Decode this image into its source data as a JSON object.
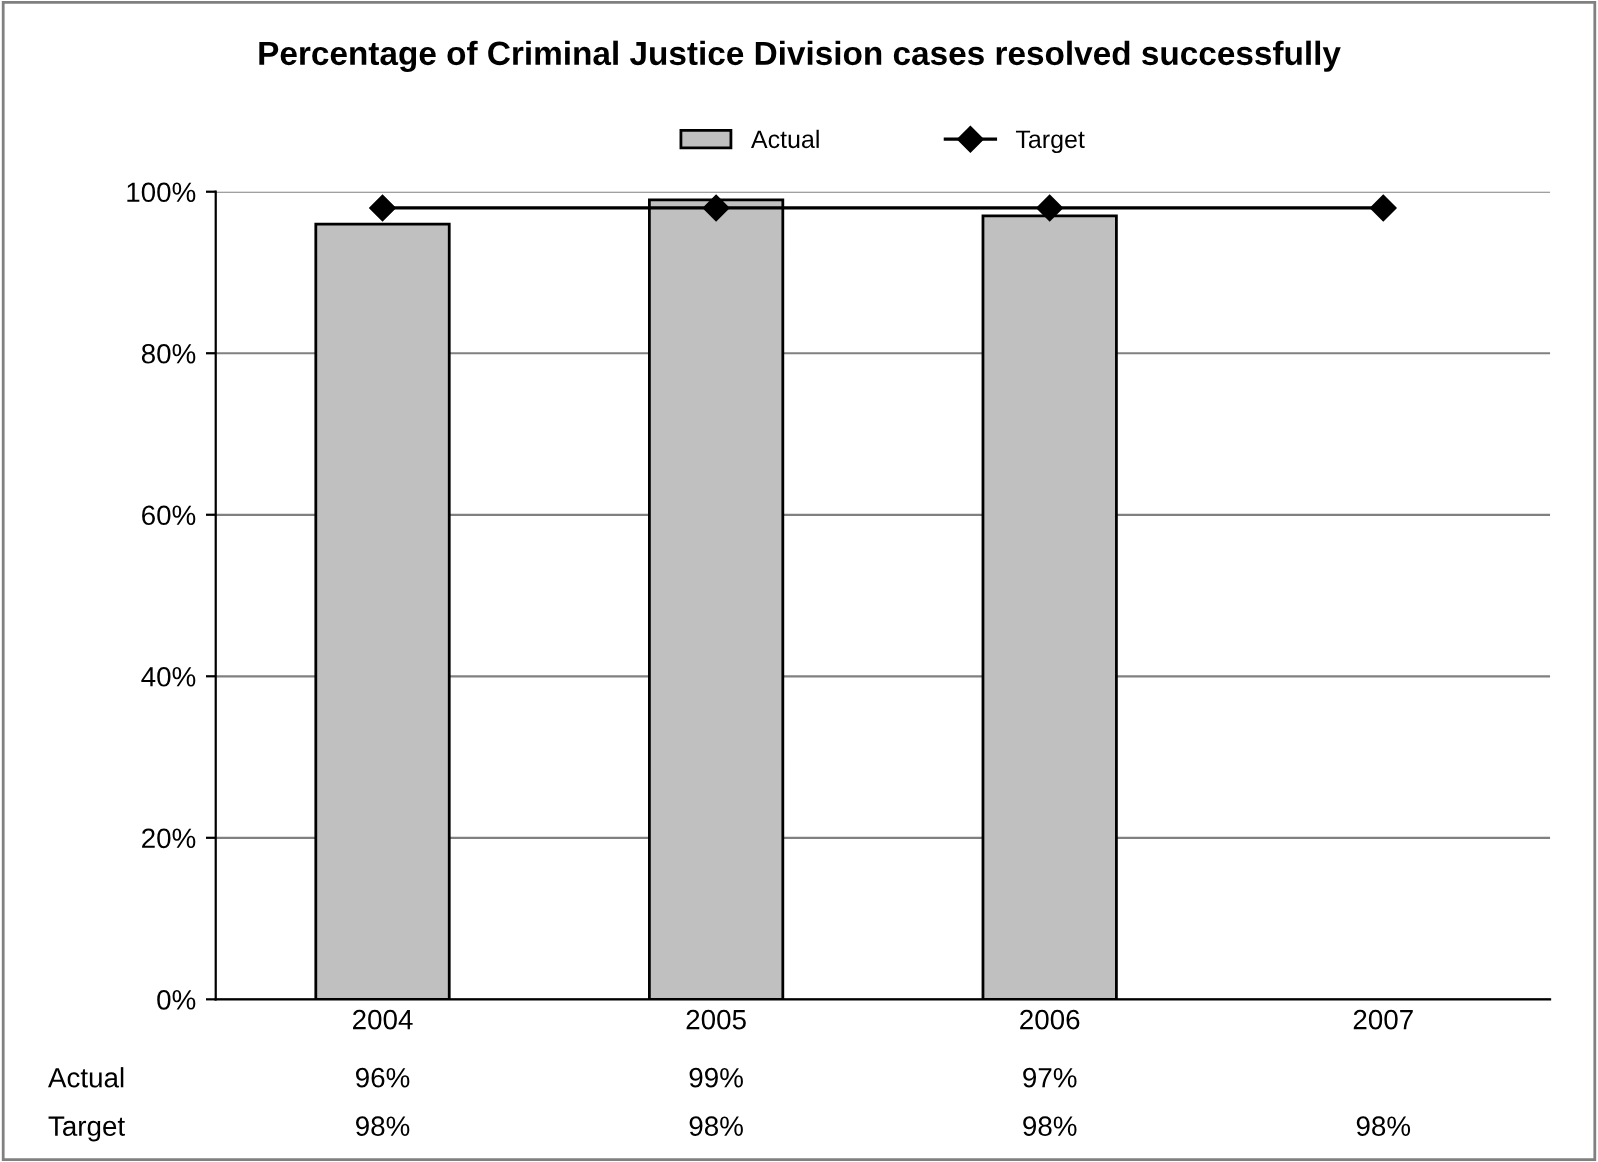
{
  "chart_data": {
    "type": "bar",
    "title": "Percentage of Criminal Justice Division cases resolved successfully",
    "categories": [
      "2004",
      "2005",
      "2006",
      "2007"
    ],
    "series": [
      {
        "name": "Actual",
        "color": "#c0c0c0",
        "values": [
          96,
          99,
          97,
          null
        ],
        "value_labels": [
          "96%",
          "99%",
          "97%",
          null
        ]
      },
      {
        "name": "Target",
        "type": "line",
        "color": "#000000",
        "marker": "diamond",
        "values": [
          98,
          98,
          98,
          98
        ],
        "value_labels": [
          "98%",
          "98%",
          "98%",
          "98%"
        ]
      }
    ],
    "ylim": [
      0,
      100
    ],
    "yticks": [
      {
        "value": 0,
        "label": "0%"
      },
      {
        "value": 20,
        "label": "20%"
      },
      {
        "value": 40,
        "label": "40%"
      },
      {
        "value": 60,
        "label": "60%"
      },
      {
        "value": 80,
        "label": "80%"
      },
      {
        "value": 100,
        "label": "100%"
      }
    ],
    "grid": "y",
    "legend": "top"
  }
}
